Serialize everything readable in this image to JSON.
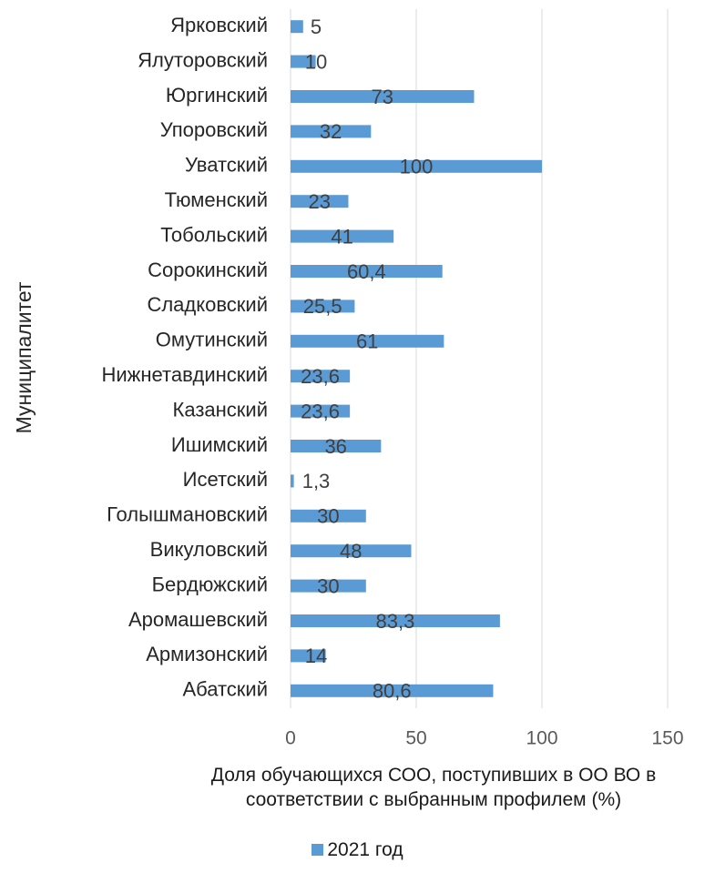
{
  "chart_data": {
    "type": "bar",
    "orientation": "horizontal",
    "x_label": "Доля обучающихся СОО, поступивших в ОО ВО в соответствии с выбранным профилем (%)",
    "y_label": "Муниципалитет",
    "categories": [
      "Абатский",
      "Армизонский",
      "Аромашевский",
      "Бердюжский",
      "Викуловский",
      "Голышмановский",
      "Исетский",
      "Ишимский",
      "Казанский",
      "Нижнетавдинский",
      "Омутинский",
      "Сладковский",
      "Сорокинский",
      "Тобольский",
      "Тюменский",
      "Уватский",
      "Упоровский",
      "Юргинский",
      "Ялуторовский",
      "Ярковский"
    ],
    "series": [
      {
        "name": "2021 год",
        "color": "#5b9bd5",
        "values": [
          80.6,
          14,
          83.3,
          30,
          48,
          30,
          1.3,
          36,
          23.6,
          23.6,
          61,
          25.5,
          60.4,
          41,
          23,
          100,
          32,
          73,
          10,
          5
        ],
        "value_labels": [
          "80,6",
          "14",
          "83,3",
          "30",
          "48",
          "30",
          "1,3",
          "36",
          "23,6",
          "23,6",
          "61",
          "25,5",
          "60,4",
          "41",
          "23",
          "100",
          "32",
          "73",
          "10",
          "5"
        ]
      }
    ],
    "xlim": [
      0,
      150
    ],
    "xticks": [
      0,
      50,
      100,
      150
    ],
    "grid": true
  }
}
